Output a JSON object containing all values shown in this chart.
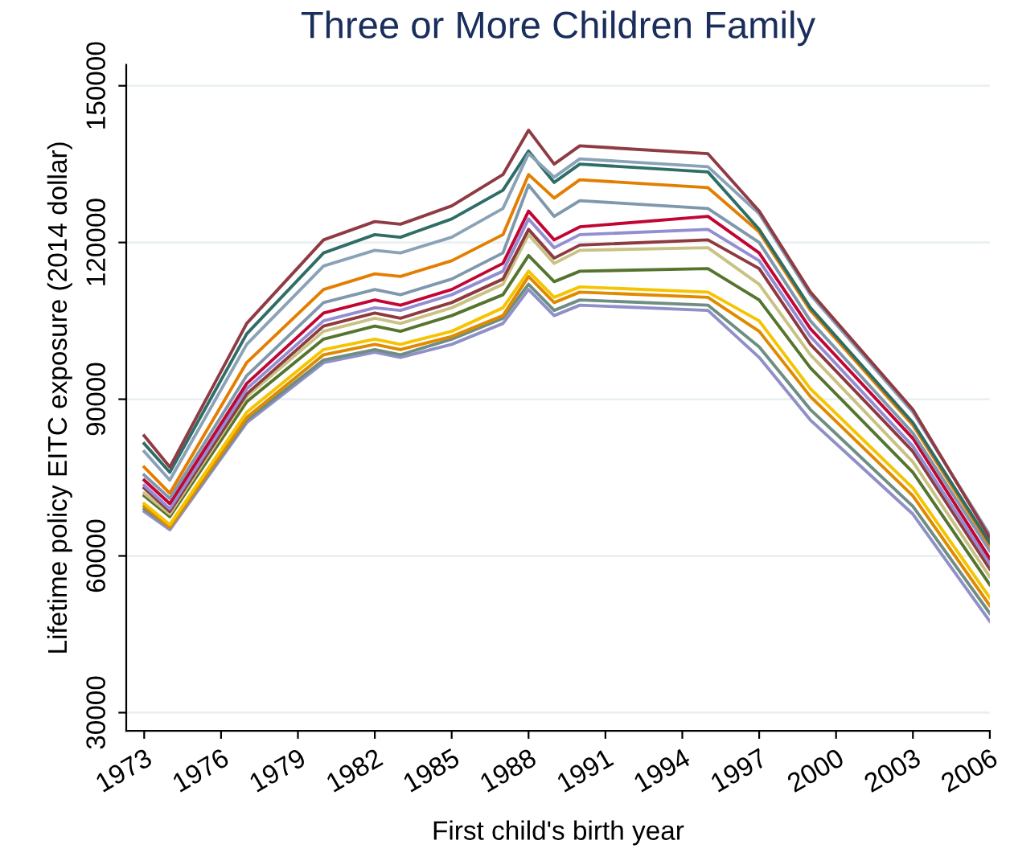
{
  "chart_data": {
    "type": "line",
    "title": "Three or More Children Family",
    "xlabel": "First child's birth year",
    "ylabel": "Lifetime policy EITC exposure (2014 dollar)",
    "x": [
      1973,
      1974,
      1977,
      1980,
      1982,
      1983,
      1985,
      1987,
      1988,
      1989,
      1990,
      1995,
      1997,
      1999,
      2003,
      2006
    ],
    "xlim": [
      1972.3,
      2006
    ],
    "xticks": [
      1973,
      1976,
      1979,
      1982,
      1985,
      1988,
      1991,
      1994,
      1997,
      2000,
      2003,
      2006
    ],
    "ylim": [
      26500,
      154000
    ],
    "yticks": [
      30000,
      60000,
      90000,
      120000,
      150000
    ],
    "grid": "y",
    "marker": "none",
    "line_style": "solid",
    "series": [
      {
        "color": "#9090c8",
        "values": [
          68500,
          65000,
          85500,
          97000,
          99000,
          98000,
          100500,
          104500,
          111000,
          106000,
          108000,
          107000,
          98000,
          86000,
          68000,
          47500
        ]
      },
      {
        "color": "#6e8e84",
        "values": [
          69000,
          65500,
          86000,
          97500,
          99500,
          98500,
          101500,
          105500,
          112000,
          107000,
          109000,
          108000,
          100000,
          88000,
          69500,
          49000
        ]
      },
      {
        "color": "#e08a00",
        "values": [
          69500,
          65500,
          86500,
          98500,
          100500,
          99500,
          102000,
          106000,
          113500,
          108500,
          110500,
          109500,
          103000,
          90500,
          71500,
          50500
        ]
      },
      {
        "color": "#f5c400",
        "values": [
          70000,
          66000,
          87500,
          99500,
          101500,
          100500,
          103000,
          107500,
          114500,
          109500,
          111500,
          110500,
          105000,
          92000,
          73000,
          52000
        ]
      },
      {
        "color": "#55752f",
        "values": [
          71500,
          67500,
          89500,
          101500,
          104000,
          103000,
          106000,
          110000,
          117500,
          112500,
          114500,
          115000,
          109000,
          96000,
          76000,
          54500
        ]
      },
      {
        "color": "#c8c284",
        "values": [
          72000,
          68000,
          90500,
          103000,
          105500,
          104500,
          107500,
          112000,
          121500,
          116000,
          118500,
          119000,
          112000,
          98500,
          78000,
          56000
        ]
      },
      {
        "color": "#8e3a3f",
        "values": [
          73000,
          68500,
          91000,
          104000,
          106500,
          105500,
          108500,
          113000,
          122500,
          117000,
          119500,
          120500,
          115000,
          100500,
          80000,
          57500
        ]
      },
      {
        "color": "#938dd2",
        "values": [
          73500,
          69000,
          92000,
          105000,
          107500,
          107000,
          110000,
          114500,
          124500,
          119000,
          121500,
          122500,
          116500,
          102000,
          81000,
          58500
        ]
      },
      {
        "color": "#c10534",
        "values": [
          74500,
          70000,
          93000,
          106500,
          109000,
          108000,
          111000,
          116000,
          126000,
          120500,
          123000,
          125000,
          118000,
          103500,
          82500,
          59500
        ]
      },
      {
        "color": "#7f98ad",
        "values": [
          75500,
          71000,
          94500,
          108500,
          111000,
          110000,
          113000,
          118000,
          131000,
          125000,
          128000,
          126500,
          120000,
          105000,
          83500,
          61000
        ]
      },
      {
        "color": "#e37e00",
        "values": [
          77000,
          72000,
          97000,
          111000,
          114000,
          113500,
          116500,
          121500,
          133000,
          128500,
          132000,
          130500,
          122000,
          107000,
          85000,
          62000
        ]
      },
      {
        "color": "#2e6e67",
        "values": [
          81500,
          76000,
          102500,
          118000,
          121500,
          121000,
          124500,
          130000,
          137500,
          131500,
          135000,
          133500,
          122500,
          107500,
          85500,
          62500
        ]
      },
      {
        "color": "#8aa2b8",
        "values": [
          80000,
          74500,
          100500,
          115500,
          118500,
          118000,
          121000,
          126500,
          137000,
          132500,
          136000,
          134500,
          125500,
          110000,
          87500,
          64000
        ]
      },
      {
        "color": "#8f3b43",
        "values": [
          83000,
          77000,
          104500,
          120500,
          124000,
          123500,
          127000,
          133000,
          141500,
          135000,
          138500,
          137000,
          126000,
          110500,
          88000,
          63500
        ]
      }
    ]
  }
}
